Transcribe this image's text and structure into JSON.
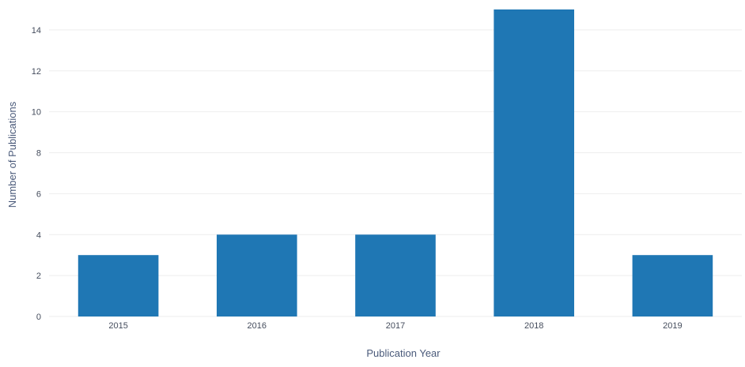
{
  "chart_data": {
    "type": "bar",
    "title": "",
    "xlabel": "Publication Year",
    "ylabel": "Number of Publications",
    "categories": [
      "2015",
      "2016",
      "2017",
      "2018",
      "2019"
    ],
    "values": [
      3,
      4,
      4,
      15,
      3
    ],
    "ylim": [
      0,
      15
    ],
    "yticks": [
      0,
      2,
      4,
      6,
      8,
      10,
      12,
      14
    ],
    "grid": true,
    "legend": "none",
    "bar_color": "#1f77b4"
  }
}
